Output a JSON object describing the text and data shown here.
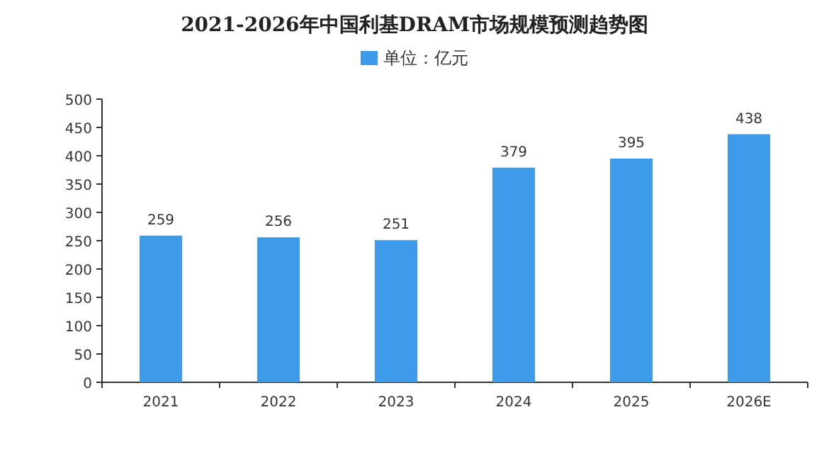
{
  "chart_data": {
    "type": "bar",
    "title": "2021-2026年中国利基DRAM市场规模预测趋势图",
    "categories": [
      "2021",
      "2022",
      "2023",
      "2024",
      "2025",
      "2026E"
    ],
    "series": [
      {
        "name": "单位：亿元",
        "color": "#3d9be9",
        "values": [
          259,
          256,
          251,
          379,
          395,
          438
        ]
      }
    ],
    "ylim": [
      0,
      500
    ],
    "yticks": [
      0,
      50,
      100,
      150,
      200,
      250,
      300,
      350,
      400,
      450,
      500
    ],
    "data_labels": true,
    "legend": "top",
    "grid": false
  }
}
